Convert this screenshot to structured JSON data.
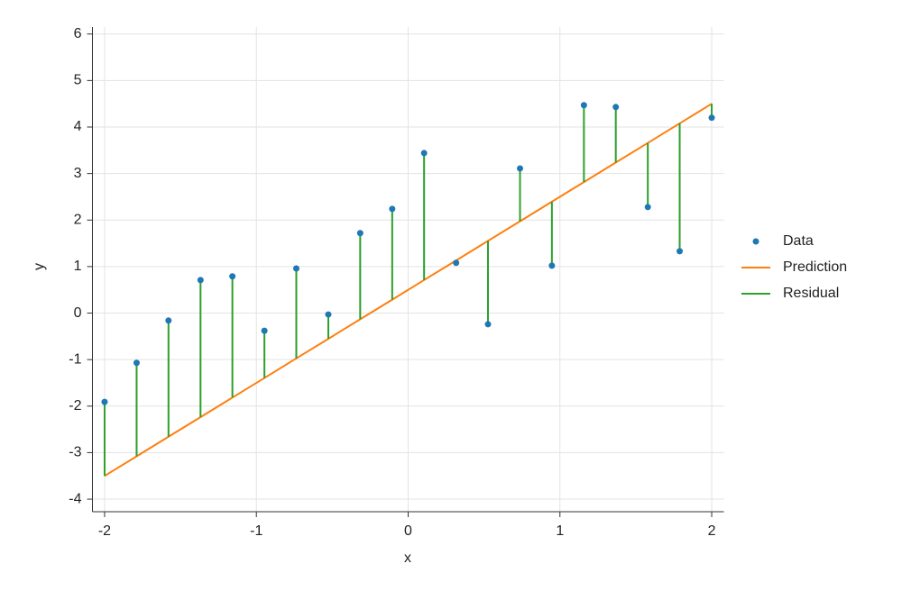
{
  "chart_data": {
    "type": "scatter",
    "x_label": "x",
    "y_label": "y",
    "x": [
      -2,
      -1.789,
      -1.579,
      -1.368,
      -1.158,
      -0.947,
      -0.737,
      -0.526,
      -0.316,
      -0.105,
      0.105,
      0.316,
      0.526,
      0.737,
      0.947,
      1.158,
      1.368,
      1.579,
      1.789,
      2
    ],
    "series": [
      {
        "name": "Data",
        "color": "#1f77b4",
        "values": [
          -1.91,
          -1.07,
          -0.16,
          0.71,
          0.79,
          -0.38,
          0.96,
          -0.03,
          1.72,
          2.24,
          3.44,
          1.08,
          -0.24,
          3.11,
          1.02,
          4.47,
          4.43,
          2.28,
          1.33,
          4.2
        ]
      },
      {
        "name": "Prediction",
        "color": "#ff7f0e",
        "values": [
          -3.5,
          -3.079,
          -2.658,
          -2.237,
          -1.816,
          -1.395,
          -0.974,
          -0.553,
          -0.132,
          0.289,
          0.711,
          1.132,
          1.553,
          1.974,
          2.395,
          2.816,
          3.237,
          3.658,
          4.079,
          4.5
        ]
      },
      {
        "name": "Residual",
        "color": "#2ca02c"
      }
    ],
    "xlim": [
      -2.08,
      2.08
    ],
    "ylim": [
      -4.27,
      6.15
    ],
    "xticks": [
      -2,
      -1,
      0,
      1,
      2
    ],
    "yticks": [
      -4,
      -3,
      -2,
      -1,
      0,
      1,
      2,
      3,
      4,
      5,
      6
    ],
    "grid": true,
    "legend": "right"
  }
}
